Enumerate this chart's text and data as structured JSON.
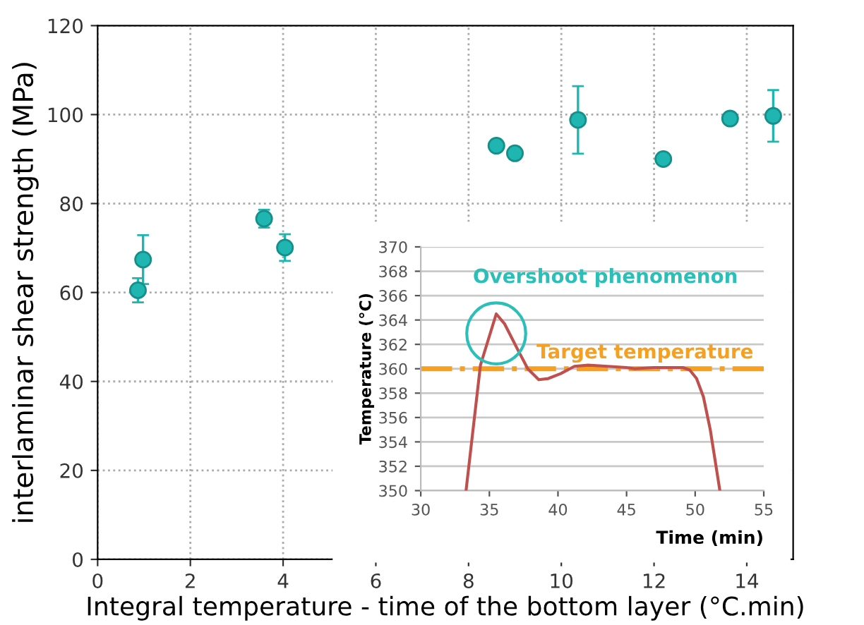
{
  "chart_data": [
    {
      "type": "scatter",
      "xlabel": "Integral temperature - time of the bottom layer (°C.min)",
      "ylabel": "interlaminar shear strength (MPa)",
      "x": [
        0.87,
        0.98,
        3.59,
        4.04,
        8.6,
        9.0,
        10.36,
        12.2,
        13.64,
        14.57
      ],
      "series": [
        {
          "color": "#1fb5b0",
          "values": [
            60.5,
            67.4,
            76.6,
            70.1,
            93.0,
            91.3,
            98.8,
            90.0,
            99.1,
            99.7
          ],
          "errors": [
            2.7,
            5.5,
            2,
            3,
            1,
            null,
            7.6,
            null,
            null,
            5.8
          ]
        }
      ],
      "xlim": [
        0,
        15
      ],
      "ylim": [
        0,
        120
      ],
      "xticks": [
        0,
        2,
        4,
        6,
        8,
        10,
        12,
        14
      ],
      "yticks": [
        0,
        20,
        40,
        60,
        80,
        100,
        120
      ],
      "grid": true,
      "marker": "circle"
    },
    {
      "type": "line",
      "xlabel": "Time (min)",
      "ylabel": "Temperature (°C)",
      "series": [
        {
          "color": "#c0504d",
          "x": [
            33.3,
            34.35,
            35.5,
            36.1,
            37.1,
            37.8,
            38.6,
            39.3,
            40.2,
            41.2,
            42.2,
            43.6,
            45.0,
            45.6,
            47.0,
            49.1,
            49.6,
            50.1,
            50.6,
            51.1,
            51.8
          ],
          "values": [
            350,
            360.3,
            364.5,
            363.7,
            361.5,
            360,
            359.1,
            359.2,
            359.6,
            360.2,
            360.3,
            360.2,
            360.1,
            360.0,
            360.1,
            360.1,
            359.9,
            359.2,
            357.7,
            355.0,
            350
          ]
        }
      ],
      "xlim": [
        30,
        55
      ],
      "ylim": [
        350,
        370
      ],
      "xticks": [
        30,
        35,
        40,
        45,
        50,
        55
      ],
      "yticks": [
        350,
        352,
        354,
        356,
        358,
        360,
        362,
        364,
        366,
        368,
        370
      ],
      "grid": "y",
      "ref_lines": [
        {
          "axis": "y",
          "value": 360,
          "label": "Target temperature",
          "color": "#f5a020",
          "line_style": "dashdot"
        }
      ],
      "annotations": [
        {
          "text": "Overshoot phenomenon",
          "x": 35.5,
          "y": 364.5
        }
      ]
    }
  ]
}
